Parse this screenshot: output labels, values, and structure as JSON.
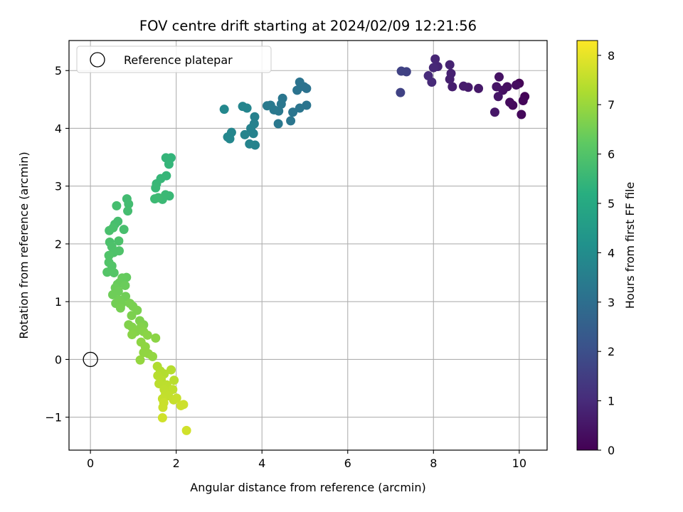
{
  "chart_data": {
    "type": "scatter",
    "title": "FOV centre drift starting at 2024/02/09 12:21:56",
    "xlabel": "Angular distance from reference (arcmin)",
    "ylabel": "Rotation from reference (arcmin)",
    "xlim": [
      -0.5,
      10.65
    ],
    "ylim": [
      -1.57,
      5.52
    ],
    "xticks": [
      0,
      2,
      4,
      6,
      8,
      10
    ],
    "yticks": [
      -1,
      0,
      1,
      2,
      3,
      4,
      5
    ],
    "xtick_labels": [
      "0",
      "2",
      "4",
      "6",
      "8",
      "10"
    ],
    "ytick_labels": [
      "−1",
      "0",
      "1",
      "2",
      "3",
      "4",
      "5"
    ],
    "grid": true,
    "legend": {
      "placement": "top-left",
      "entries": [
        "Reference platepar"
      ]
    },
    "reference_point": {
      "x": 0,
      "y": 0,
      "label": "Reference platepar"
    },
    "colorbar": {
      "label": "Hours from first FF file",
      "colormap": "viridis",
      "min": 0,
      "max": 8.3,
      "ticks": [
        0,
        1,
        2,
        3,
        4,
        5,
        6,
        7,
        8
      ],
      "tick_labels": [
        "0",
        "1",
        "2",
        "3",
        "4",
        "5",
        "6",
        "7",
        "8"
      ]
    },
    "series": [
      {
        "points": [
          [
            10.0,
            4.78,
            0.04
          ],
          [
            10.13,
            4.55,
            0.08
          ],
          [
            10.09,
            4.48,
            0.12
          ],
          [
            10.05,
            4.24,
            0.16
          ],
          [
            9.85,
            4.4,
            0.2
          ],
          [
            9.78,
            4.45,
            0.24
          ],
          [
            9.93,
            4.75,
            0.28
          ],
          [
            9.72,
            4.72,
            0.32
          ],
          [
            9.62,
            4.66,
            0.36
          ],
          [
            9.53,
            4.89,
            0.4
          ],
          [
            9.47,
            4.72,
            0.44
          ],
          [
            9.51,
            4.55,
            0.48
          ],
          [
            9.43,
            4.28,
            0.52
          ],
          [
            9.05,
            4.69,
            0.56
          ],
          [
            8.81,
            4.71,
            0.6
          ],
          [
            8.7,
            4.73,
            0.64
          ],
          [
            8.44,
            4.72,
            0.68
          ],
          [
            8.38,
            4.85,
            0.72
          ],
          [
            8.41,
            4.95,
            0.76
          ],
          [
            8.38,
            5.1,
            0.8
          ],
          [
            8.1,
            5.07,
            0.84
          ],
          [
            8.04,
            5.2,
            0.88
          ],
          [
            8.0,
            5.05,
            0.92
          ],
          [
            7.96,
            4.8,
            0.96
          ],
          [
            7.88,
            4.91,
            1.0
          ],
          [
            7.37,
            4.98,
            1.6
          ],
          [
            7.25,
            4.99,
            1.62
          ],
          [
            7.23,
            4.62,
            1.64
          ],
          [
            5.04,
            4.69,
            3.1
          ],
          [
            4.98,
            4.72,
            3.12
          ],
          [
            4.88,
            4.8,
            3.14
          ],
          [
            4.82,
            4.66,
            3.16
          ],
          [
            5.04,
            4.4,
            3.18
          ],
          [
            4.88,
            4.35,
            3.2
          ],
          [
            4.72,
            4.28,
            3.22
          ],
          [
            4.67,
            4.13,
            3.24
          ],
          [
            4.48,
            4.52,
            3.26
          ],
          [
            4.45,
            4.42,
            3.28
          ],
          [
            4.39,
            4.3,
            3.3
          ],
          [
            4.38,
            4.08,
            3.32
          ],
          [
            4.28,
            4.32,
            3.34
          ],
          [
            4.2,
            4.4,
            3.36
          ],
          [
            4.12,
            4.39,
            3.38
          ],
          [
            3.83,
            4.2,
            3.6
          ],
          [
            3.82,
            4.08,
            3.62
          ],
          [
            3.8,
            3.91,
            3.64
          ],
          [
            3.74,
            4.0,
            3.66
          ],
          [
            3.84,
            3.71,
            3.68
          ],
          [
            3.71,
            3.73,
            3.7
          ],
          [
            3.6,
            3.89,
            3.72
          ],
          [
            3.65,
            4.35,
            3.74
          ],
          [
            3.55,
            4.38,
            3.76
          ],
          [
            3.29,
            3.93,
            3.78
          ],
          [
            3.2,
            3.85,
            3.8
          ],
          [
            3.25,
            3.82,
            3.82
          ],
          [
            3.12,
            4.33,
            3.84
          ],
          [
            1.88,
            3.49,
            5.4
          ],
          [
            1.76,
            3.49,
            5.42
          ],
          [
            1.83,
            3.38,
            5.44
          ],
          [
            1.77,
            3.18,
            5.46
          ],
          [
            1.64,
            3.13,
            5.48
          ],
          [
            1.54,
            3.04,
            5.5
          ],
          [
            1.52,
            2.97,
            5.52
          ],
          [
            1.84,
            2.83,
            5.54
          ],
          [
            1.75,
            2.85,
            5.56
          ],
          [
            1.68,
            2.77,
            5.58
          ],
          [
            1.5,
            2.78,
            5.6
          ],
          [
            1.58,
            2.8,
            5.62
          ],
          [
            0.85,
            2.78,
            5.7
          ],
          [
            0.89,
            2.69,
            5.72
          ],
          [
            0.87,
            2.57,
            5.74
          ],
          [
            0.61,
            2.66,
            5.76
          ],
          [
            0.64,
            2.39,
            5.78
          ],
          [
            0.57,
            2.34,
            5.8
          ],
          [
            0.78,
            2.25,
            5.82
          ],
          [
            0.44,
            2.23,
            5.84
          ],
          [
            0.53,
            2.28,
            5.86
          ],
          [
            0.45,
            2.03,
            5.88
          ],
          [
            0.66,
            2.05,
            5.9
          ],
          [
            0.5,
            1.95,
            5.92
          ],
          [
            0.54,
            1.85,
            5.94
          ],
          [
            0.67,
            1.88,
            5.96
          ],
          [
            0.43,
            1.8,
            5.98
          ],
          [
            0.43,
            1.68,
            6.0
          ],
          [
            0.5,
            1.62,
            6.02
          ],
          [
            0.39,
            1.51,
            6.04
          ],
          [
            0.55,
            1.5,
            6.06
          ],
          [
            0.84,
            1.42,
            6.3
          ],
          [
            0.74,
            1.41,
            6.32
          ],
          [
            0.68,
            1.33,
            6.34
          ],
          [
            0.63,
            1.3,
            6.36
          ],
          [
            0.81,
            1.28,
            6.38
          ],
          [
            0.58,
            1.24,
            6.4
          ],
          [
            0.65,
            1.18,
            6.42
          ],
          [
            0.52,
            1.12,
            6.44
          ],
          [
            0.82,
            1.09,
            6.46
          ],
          [
            0.67,
            1.03,
            6.48
          ],
          [
            0.59,
            0.97,
            6.5
          ],
          [
            0.73,
            0.97,
            6.52
          ],
          [
            0.7,
            0.89,
            6.54
          ],
          [
            0.92,
            0.97,
            6.56
          ],
          [
            0.99,
            0.92,
            6.58
          ],
          [
            1.09,
            0.85,
            6.6
          ],
          [
            0.96,
            0.76,
            6.62
          ],
          [
            1.15,
            0.67,
            6.64
          ],
          [
            1.24,
            0.6,
            6.66
          ],
          [
            0.89,
            0.6,
            6.68
          ],
          [
            0.97,
            0.56,
            6.7
          ],
          [
            1.18,
            0.56,
            6.72
          ],
          [
            1.06,
            0.48,
            6.74
          ],
          [
            1.24,
            0.48,
            6.76
          ],
          [
            0.97,
            0.43,
            6.78
          ],
          [
            1.33,
            0.42,
            6.8
          ],
          [
            1.52,
            0.37,
            6.82
          ],
          [
            1.18,
            0.3,
            6.84
          ],
          [
            1.28,
            0.22,
            6.86
          ],
          [
            1.24,
            0.12,
            6.88
          ],
          [
            1.35,
            0.1,
            6.9
          ],
          [
            1.45,
            0.05,
            6.92
          ],
          [
            1.16,
            -0.01,
            6.94
          ],
          [
            1.56,
            -0.12,
            7.3
          ],
          [
            1.63,
            -0.2,
            7.32
          ],
          [
            1.72,
            -0.25,
            7.34
          ],
          [
            1.88,
            -0.18,
            7.36
          ],
          [
            1.57,
            -0.28,
            7.38
          ],
          [
            1.65,
            -0.35,
            7.4
          ],
          [
            1.95,
            -0.36,
            7.42
          ],
          [
            1.6,
            -0.42,
            7.44
          ],
          [
            1.78,
            -0.44,
            7.46
          ],
          [
            1.72,
            -0.52,
            7.48
          ],
          [
            1.92,
            -0.52,
            7.5
          ],
          [
            1.75,
            -0.6,
            7.52
          ],
          [
            1.82,
            -0.63,
            7.54
          ],
          [
            1.68,
            -0.68,
            7.56
          ],
          [
            1.94,
            -0.7,
            7.58
          ],
          [
            2.01,
            -0.67,
            7.6
          ],
          [
            1.71,
            -0.75,
            7.62
          ],
          [
            1.69,
            -0.83,
            7.64
          ],
          [
            2.11,
            -0.8,
            7.66
          ],
          [
            2.17,
            -0.78,
            7.68
          ],
          [
            1.68,
            -1.01,
            7.7
          ],
          [
            2.24,
            -1.23,
            7.72
          ]
        ]
      }
    ]
  }
}
